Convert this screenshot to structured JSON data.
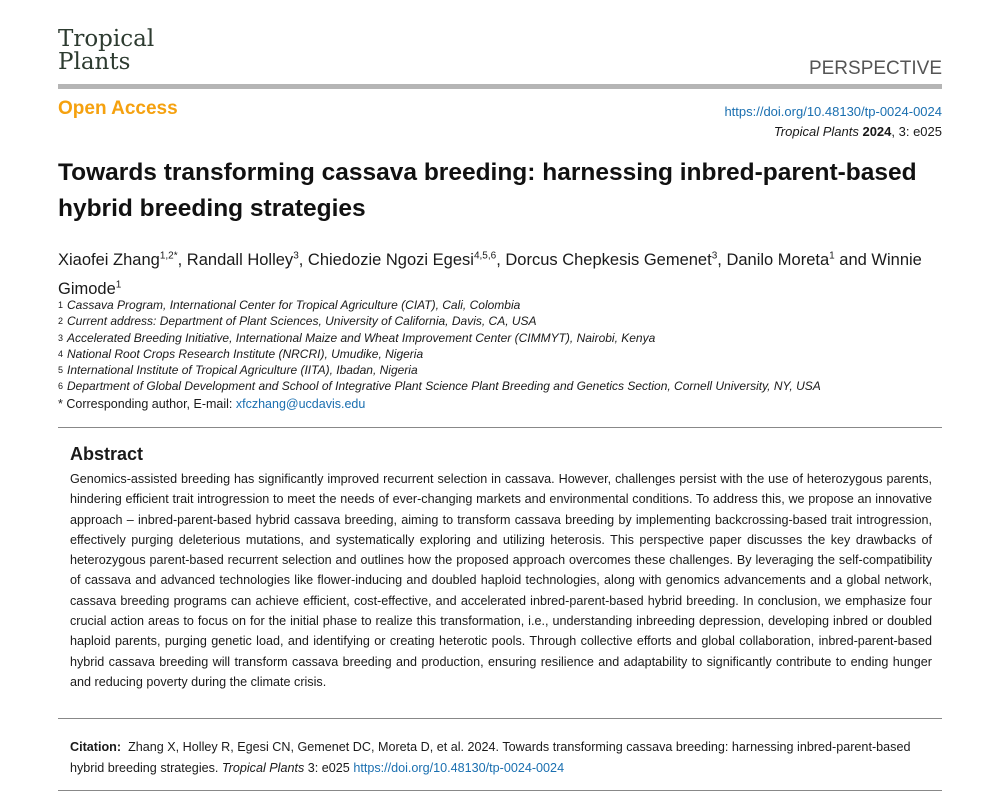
{
  "journal": {
    "logo_line1": "Tropical",
    "logo_line2": "Plants",
    "article_type": "PERSPECTIVE",
    "open_access": "Open Access",
    "doi": "https://doi.org/10.48130/tp-0024-0024",
    "ref_journal": "Tropical Plants",
    "ref_year": "2024",
    "ref_rest": ", 3: e025"
  },
  "title": "Towards transforming cassava breeding: harnessing inbred-parent-based hybrid breeding strategies",
  "authors": [
    {
      "name": "Xiaofei Zhang",
      "sup": "1,2*",
      "sep": ", "
    },
    {
      "name": "Randall Holley",
      "sup": "3",
      "sep": ", "
    },
    {
      "name": "Chiedozie Ngozi Egesi",
      "sup": "4,5,6",
      "sep": ", "
    },
    {
      "name": "Dorcus Chepkesis Gemenet",
      "sup": "3",
      "sep": ", "
    },
    {
      "name": "Danilo Moreta",
      "sup": "1",
      "sep": " and "
    },
    {
      "name": "Winnie Gimode",
      "sup": "1",
      "sep": ""
    }
  ],
  "affiliations": [
    {
      "n": "1",
      "text": "Cassava Program, International Center for Tropical Agriculture (CIAT), Cali, Colombia"
    },
    {
      "n": "2",
      "text": "Current address: Department of Plant Sciences, University of California, Davis, CA, USA"
    },
    {
      "n": "3",
      "text": "Accelerated Breeding Initiative, International Maize and Wheat Improvement Center (CIMMYT), Nairobi, Kenya"
    },
    {
      "n": "4",
      "text": "National Root Crops Research Institute (NRCRI), Umudike, Nigeria"
    },
    {
      "n": "5",
      "text": "International Institute of Tropical Agriculture (IITA), Ibadan, Nigeria"
    },
    {
      "n": "6",
      "text": "Department of Global Development and School of Integrative Plant Science Plant Breeding and Genetics Section, Cornell University, NY, USA"
    }
  ],
  "corresponding": {
    "label": "* Corresponding author, E-mail: ",
    "email": "xfczhang@ucdavis.edu"
  },
  "abstract": {
    "heading": "Abstract",
    "text": "Genomics-assisted breeding has significantly improved recurrent selection in cassava. However, challenges persist with the use of heterozygous parents, hindering efficient trait introgression to meet the needs of ever-changing markets and environmental conditions. To address this, we propose an innovative approach – inbred-parent-based hybrid cassava breeding, aiming to transform cassava breeding by implementing backcrossing-based trait introgression, effectively purging deleterious mutations, and systematically exploring and utilizing heterosis. This perspective paper discusses the key drawbacks of heterozygous parent-based recurrent selection and outlines how the proposed approach overcomes these challenges. By leveraging the self-compatibility of cassava and advanced technologies like flower-inducing and doubled haploid technologies, along with genomics advancements and a global network, cassava breeding programs can achieve efficient, cost-effective, and accelerated inbred-parent-based hybrid breeding. In conclusion, we emphasize four crucial action areas to focus on for the initial phase to realize this transformation, i.e., understanding inbreeding depression, developing inbred or doubled haploid parents, purging genetic load, and identifying or creating heterotic pools. Through collective efforts and global collaboration, inbred-parent-based hybrid cassava breeding will transform cassava breeding and production, ensuring resilience and adaptability to significantly contribute to ending hunger and reducing poverty during the climate crisis."
  },
  "citation": {
    "label": "Citation:",
    "text": "Zhang X, Holley R, Egesi CN, Gemenet DC, Moreta D, et al. 2024. Towards transforming cassava breeding: harnessing inbred-parent-based hybrid breeding strategies. ",
    "journal": "Tropical Plants",
    "vol": " 3: e025 ",
    "doi": "https://doi.org/10.48130/tp-0024-0024"
  }
}
